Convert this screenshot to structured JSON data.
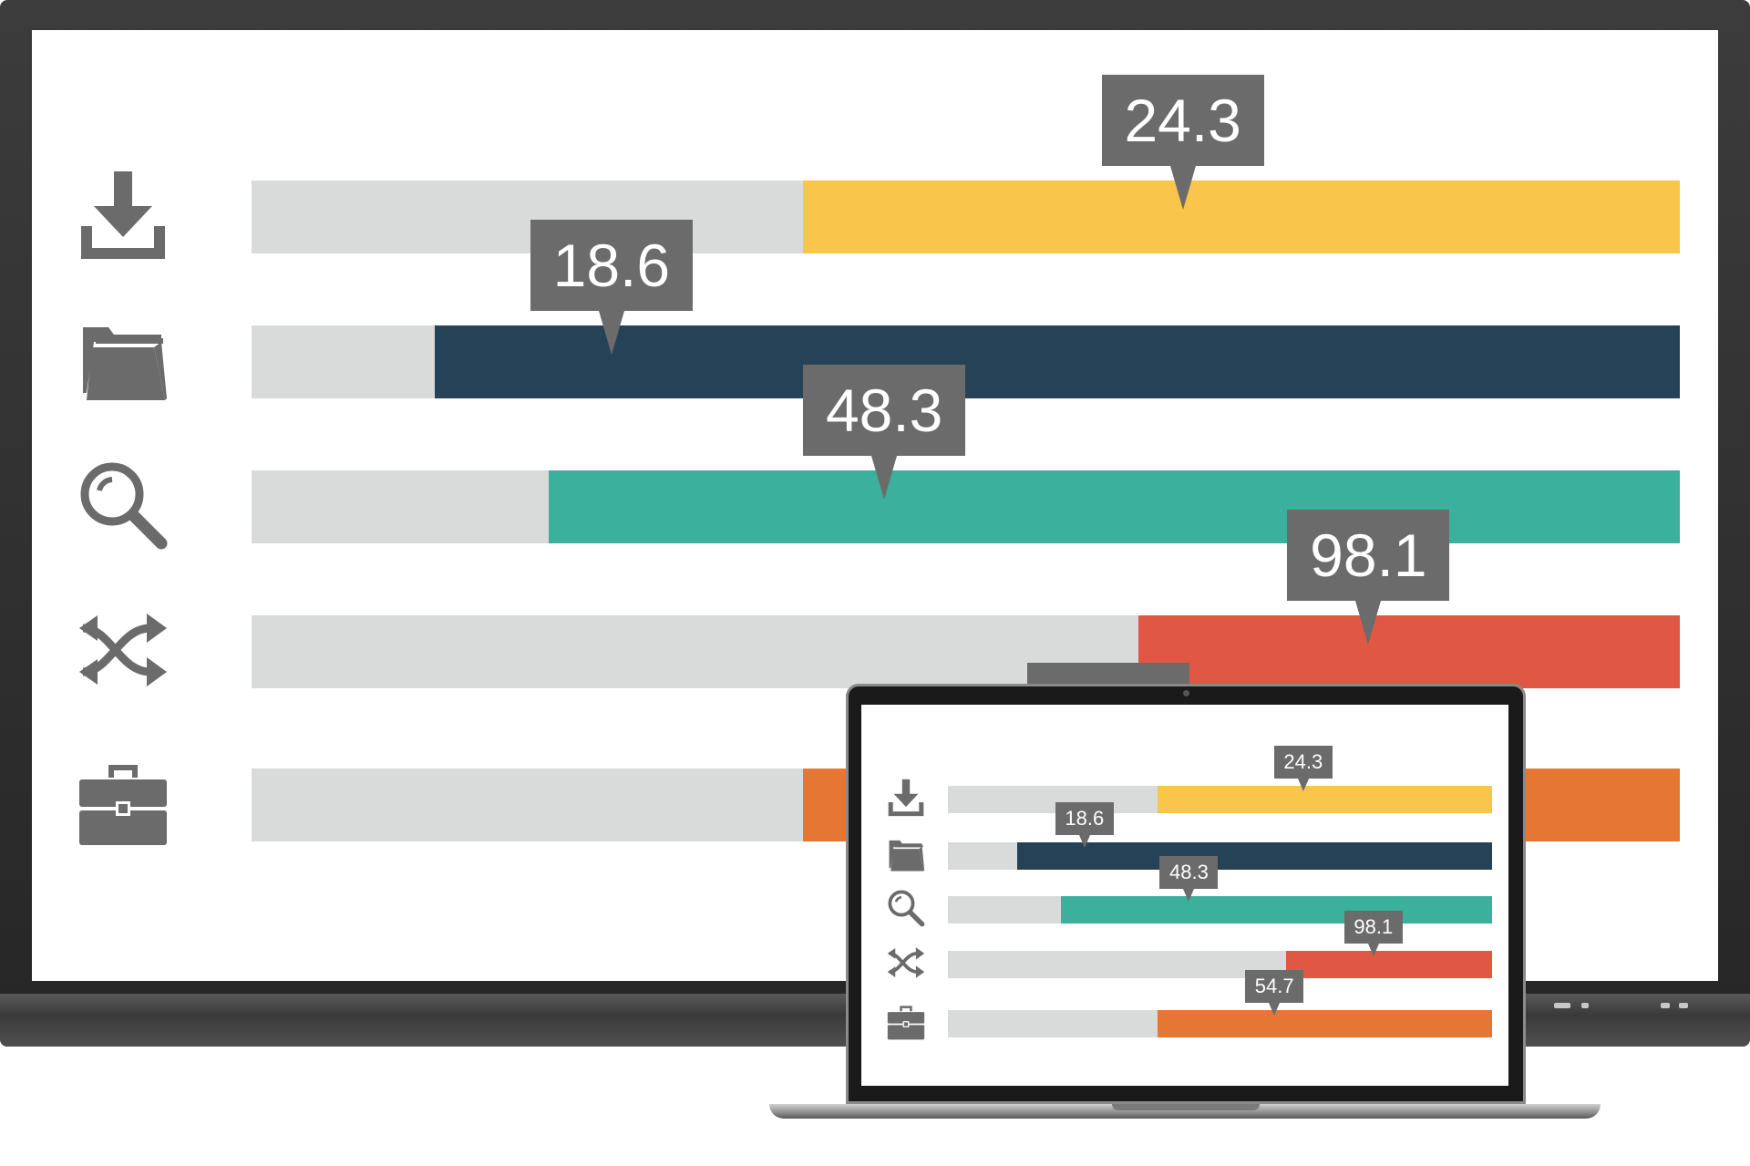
{
  "chart_data": [
    {
      "type": "bar",
      "categories": [
        "download",
        "folder",
        "search",
        "shuffle",
        "briefcase"
      ],
      "values": [
        24.3,
        18.6,
        48.3,
        98.1,
        54.7
      ],
      "fill_fraction": [
        0.614,
        0.872,
        0.792,
        0.379,
        0.614
      ]
    },
    {
      "type": "bar",
      "categories": [
        "download",
        "folder",
        "search",
        "shuffle",
        "briefcase"
      ],
      "values": [
        24.3,
        18.6,
        48.3,
        98.1,
        54.7
      ],
      "fill_fraction": [
        0.614,
        0.872,
        0.792,
        0.379,
        0.614
      ]
    }
  ],
  "rows": [
    {
      "icon": "download-icon",
      "label": "24.3",
      "color": "#f9c54a"
    },
    {
      "icon": "folder-icon",
      "label": "18.6",
      "color": "#254256"
    },
    {
      "icon": "search-icon",
      "label": "48.3",
      "color": "#3bb09c"
    },
    {
      "icon": "shuffle-icon",
      "label": "98.1",
      "color": "#e05744"
    },
    {
      "icon": "briefcase-icon",
      "label": "54.7",
      "color": "#e57634"
    }
  ]
}
